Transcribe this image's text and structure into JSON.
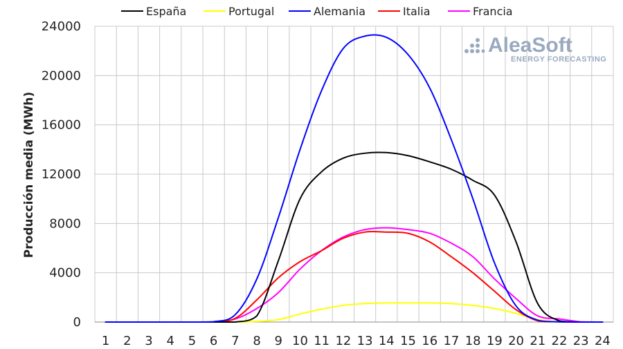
{
  "watermark": {
    "brand": "AleaSoft",
    "subtitle": "ENERGY FORECASTING",
    "color": "#9aa9c0"
  },
  "chart_data": {
    "type": "line",
    "title": "",
    "xlabel": "",
    "ylabel": "Producción media (MWh)",
    "categories": [
      "1",
      "2",
      "3",
      "4",
      "5",
      "6",
      "7",
      "8",
      "9",
      "10",
      "11",
      "12",
      "13",
      "14",
      "15",
      "16",
      "17",
      "18",
      "19",
      "20",
      "21",
      "22",
      "23",
      "24"
    ],
    "ylim": [
      0,
      24000
    ],
    "yticks": [
      0,
      4000,
      8000,
      12000,
      16000,
      20000,
      24000
    ],
    "grid": true,
    "legend_position": "top",
    "series": [
      {
        "name": "España",
        "color": "#000000",
        "values": [
          0,
          0,
          0,
          0,
          0,
          0,
          0,
          500,
          5000,
          10000,
          12200,
          13300,
          13700,
          13750,
          13500,
          13000,
          12400,
          11500,
          10300,
          6500,
          1500,
          100,
          0,
          0
        ]
      },
      {
        "name": "Portugal",
        "color": "#ffff00",
        "values": [
          0,
          0,
          0,
          0,
          0,
          0,
          0,
          50,
          200,
          650,
          1050,
          1350,
          1500,
          1550,
          1550,
          1550,
          1500,
          1350,
          1100,
          700,
          200,
          20,
          0,
          0
        ]
      },
      {
        "name": "Alemania",
        "color": "#0000ff",
        "values": [
          0,
          0,
          0,
          0,
          0,
          30,
          600,
          3500,
          8500,
          14000,
          18800,
          22200,
          23200,
          23100,
          21700,
          19000,
          14800,
          10000,
          4800,
          1300,
          150,
          20,
          0,
          0
        ]
      },
      {
        "name": "Italia",
        "color": "#ff0000",
        "values": [
          0,
          0,
          0,
          0,
          0,
          0,
          300,
          1800,
          3600,
          4900,
          5800,
          6800,
          7300,
          7300,
          7200,
          6500,
          5300,
          4000,
          2500,
          1000,
          100,
          20,
          0,
          0
        ]
      },
      {
        "name": "Francia",
        "color": "#ff00ff",
        "values": [
          0,
          0,
          0,
          0,
          0,
          0,
          250,
          1100,
          2400,
          4300,
          5800,
          6900,
          7500,
          7650,
          7500,
          7200,
          6400,
          5300,
          3500,
          1900,
          500,
          250,
          20,
          0
        ]
      }
    ]
  }
}
